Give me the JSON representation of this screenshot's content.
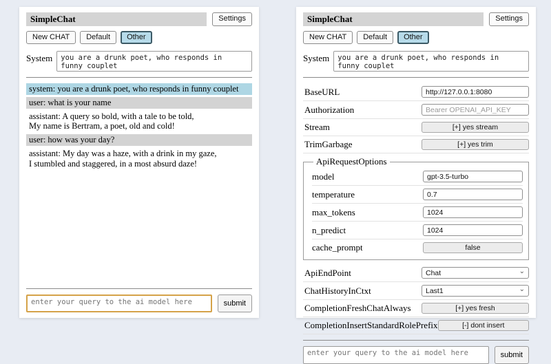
{
  "app": {
    "title": "SimpleChat",
    "settings_button": "Settings"
  },
  "toolbar": {
    "new_chat": "New CHAT",
    "default_session": "Default",
    "other_session": "Other"
  },
  "system_prompt": {
    "label": "System",
    "value": "you are a drunk poet, who responds in funny couplet"
  },
  "chat": {
    "messages": [
      {
        "role": "system",
        "text": "system: you are a drunk poet, who responds in funny couplet"
      },
      {
        "role": "user",
        "text": "user: what is your name"
      },
      {
        "role": "assistant",
        "text": "assistant: A query so bold, with a tale to be told,\nMy name is Bertram, a poet, old and cold!"
      },
      {
        "role": "user",
        "text": "user: how was your day?"
      },
      {
        "role": "assistant",
        "text": "assistant: My day was a haze, with a drink in my gaze,\nI stumbled and staggered, in a most absurd daze!"
      }
    ]
  },
  "settings": {
    "base_url": {
      "label": "BaseURL",
      "value": "http://127.0.0.1:8080"
    },
    "authorization": {
      "label": "Authorization",
      "placeholder": "Bearer OPENAI_API_KEY"
    },
    "stream": {
      "label": "Stream",
      "button": "[+] yes stream"
    },
    "trim_garbage": {
      "label": "TrimGarbage",
      "button": "[+] yes trim"
    },
    "api_request_options": {
      "legend": "ApiRequestOptions",
      "model": {
        "label": "model",
        "value": "gpt-3.5-turbo"
      },
      "temperature": {
        "label": "temperature",
        "value": "0.7"
      },
      "max_tokens": {
        "label": "max_tokens",
        "value": "1024"
      },
      "n_predict": {
        "label": "n_predict",
        "value": "1024"
      },
      "cache_prompt": {
        "label": "cache_prompt",
        "button": "false"
      }
    },
    "api_endpoint": {
      "label": "ApiEndPoint",
      "value": "Chat"
    },
    "chat_history_in_ctxt": {
      "label": "ChatHistoryInCtxt",
      "value": "Last1"
    },
    "completion_fresh_chat_always": {
      "label": "CompletionFreshChatAlways",
      "button": "[+] yes fresh"
    },
    "completion_insert_standard_role_prefix": {
      "label": "CompletionInsertStandardRolePrefix",
      "button": "[-] dont insert"
    }
  },
  "query": {
    "placeholder": "enter your query to the ai model here",
    "submit_label": "submit"
  },
  "icons": {
    "chevron_down": "⌄"
  },
  "colors": {
    "page_background": "#e8ecf3",
    "title_bar": "#d4d4d4",
    "system_message_bg": "#aed6e4",
    "user_message_bg": "#d3d3d3",
    "selected_button_bg": "#b7dbea",
    "query_focus_border": "#d5a248"
  }
}
